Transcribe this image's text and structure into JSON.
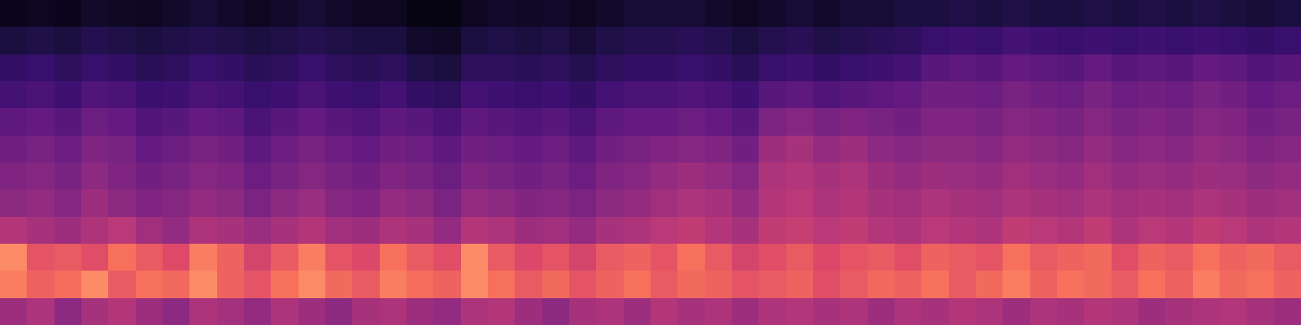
{
  "chart_data": {
    "type": "heatmap",
    "tick_labels": false,
    "grid": false,
    "zlim": [
      0,
      1
    ],
    "cells": [
      [
        0.55,
        0.6,
        0.5,
        0.58,
        0.62,
        0.55,
        0.5,
        0.6,
        0.57,
        0.52,
        0.6,
        0.55,
        0.5,
        0.58,
        0.6,
        0.55,
        0.52,
        0.6,
        0.62,
        0.55,
        0.5,
        0.58,
        0.6,
        0.55,
        0.62,
        0.58,
        0.6,
        0.55,
        0.6,
        0.62,
        0.58,
        0.6,
        0.55,
        0.6,
        0.58,
        0.62,
        0.6,
        0.55,
        0.6,
        0.58,
        0.62,
        0.6,
        0.55,
        0.58,
        0.6,
        0.62,
        0.58,
        0.55
      ],
      [
        0.88,
        0.82,
        0.85,
        0.9,
        0.8,
        0.86,
        0.84,
        0.9,
        0.82,
        0.78,
        0.86,
        0.9,
        0.84,
        0.8,
        0.88,
        0.85,
        0.82,
        0.9,
        0.86,
        0.8,
        0.84,
        0.78,
        0.82,
        0.86,
        0.8,
        0.84,
        0.82,
        0.78,
        0.8,
        0.82,
        0.76,
        0.8,
        0.84,
        0.82,
        0.86,
        0.8,
        0.84,
        0.88,
        0.82,
        0.86,
        0.84,
        0.8,
        0.86,
        0.82,
        0.88,
        0.84,
        0.86,
        0.82
      ],
      [
        0.9,
        0.78,
        0.8,
        0.76,
        0.86,
        0.8,
        0.75,
        0.88,
        0.82,
        0.72,
        0.8,
        0.88,
        0.78,
        0.74,
        0.86,
        0.8,
        0.76,
        0.9,
        0.8,
        0.74,
        0.78,
        0.72,
        0.8,
        0.82,
        0.78,
        0.86,
        0.8,
        0.72,
        0.76,
        0.8,
        0.74,
        0.78,
        0.8,
        0.76,
        0.82,
        0.8,
        0.78,
        0.86,
        0.8,
        0.82,
        0.84,
        0.76,
        0.82,
        0.8,
        0.86,
        0.82,
        0.84,
        0.8
      ],
      [
        0.62,
        0.58,
        0.55,
        0.6,
        0.64,
        0.56,
        0.52,
        0.6,
        0.58,
        0.54,
        0.58,
        0.62,
        0.56,
        0.55,
        0.6,
        0.58,
        0.52,
        0.62,
        0.6,
        0.55,
        0.56,
        0.52,
        0.58,
        0.6,
        0.64,
        0.66,
        0.62,
        0.58,
        0.66,
        0.68,
        0.64,
        0.66,
        0.62,
        0.6,
        0.64,
        0.62,
        0.6,
        0.66,
        0.64,
        0.62,
        0.66,
        0.6,
        0.64,
        0.62,
        0.66,
        0.64,
        0.6,
        0.62
      ],
      [
        0.5,
        0.52,
        0.48,
        0.55,
        0.5,
        0.46,
        0.48,
        0.52,
        0.5,
        0.45,
        0.5,
        0.54,
        0.48,
        0.46,
        0.52,
        0.5,
        0.45,
        0.52,
        0.5,
        0.47,
        0.48,
        0.45,
        0.5,
        0.52,
        0.56,
        0.6,
        0.58,
        0.52,
        0.62,
        0.64,
        0.6,
        0.62,
        0.58,
        0.56,
        0.6,
        0.58,
        0.56,
        0.6,
        0.58,
        0.56,
        0.6,
        0.56,
        0.58,
        0.56,
        0.6,
        0.58,
        0.55,
        0.56
      ],
      [
        0.46,
        0.48,
        0.44,
        0.5,
        0.46,
        0.42,
        0.44,
        0.48,
        0.46,
        0.4,
        0.44,
        0.48,
        0.44,
        0.42,
        0.46,
        0.44,
        0.4,
        0.46,
        0.44,
        0.42,
        0.44,
        0.4,
        0.46,
        0.48,
        0.52,
        0.55,
        0.52,
        0.48,
        0.6,
        0.62,
        0.58,
        0.6,
        0.55,
        0.52,
        0.55,
        0.54,
        0.52,
        0.56,
        0.54,
        0.52,
        0.56,
        0.52,
        0.54,
        0.52,
        0.55,
        0.54,
        0.5,
        0.52
      ],
      [
        0.42,
        0.44,
        0.4,
        0.46,
        0.44,
        0.38,
        0.4,
        0.44,
        0.42,
        0.36,
        0.4,
        0.44,
        0.4,
        0.38,
        0.42,
        0.4,
        0.36,
        0.42,
        0.4,
        0.38,
        0.4,
        0.36,
        0.42,
        0.44,
        0.46,
        0.48,
        0.46,
        0.42,
        0.55,
        0.58,
        0.52,
        0.55,
        0.5,
        0.48,
        0.5,
        0.5,
        0.48,
        0.52,
        0.5,
        0.48,
        0.52,
        0.48,
        0.5,
        0.48,
        0.52,
        0.5,
        0.46,
        0.48
      ],
      [
        0.36,
        0.38,
        0.34,
        0.4,
        0.38,
        0.32,
        0.34,
        0.38,
        0.36,
        0.3,
        0.34,
        0.38,
        0.34,
        0.32,
        0.36,
        0.34,
        0.3,
        0.36,
        0.34,
        0.32,
        0.34,
        0.3,
        0.36,
        0.38,
        0.38,
        0.4,
        0.38,
        0.34,
        0.45,
        0.48,
        0.44,
        0.46,
        0.44,
        0.42,
        0.46,
        0.46,
        0.44,
        0.48,
        0.46,
        0.44,
        0.48,
        0.44,
        0.46,
        0.44,
        0.48,
        0.46,
        0.42,
        0.44
      ],
      [
        0.28,
        0.3,
        0.26,
        0.32,
        0.3,
        0.25,
        0.26,
        0.3,
        0.28,
        0.24,
        0.26,
        0.3,
        0.26,
        0.24,
        0.28,
        0.22,
        0.2,
        0.28,
        0.26,
        0.24,
        0.26,
        0.22,
        0.28,
        0.3,
        0.3,
        0.32,
        0.3,
        0.26,
        0.34,
        0.36,
        0.32,
        0.34,
        0.36,
        0.38,
        0.42,
        0.42,
        0.4,
        0.44,
        0.42,
        0.4,
        0.44,
        0.4,
        0.42,
        0.4,
        0.44,
        0.42,
        0.38,
        0.4
      ],
      [
        0.22,
        0.24,
        0.2,
        0.24,
        0.22,
        0.18,
        0.2,
        0.24,
        0.22,
        0.18,
        0.2,
        0.24,
        0.2,
        0.18,
        0.2,
        0.14,
        0.12,
        0.2,
        0.2,
        0.18,
        0.2,
        0.16,
        0.2,
        0.22,
        0.22,
        0.24,
        0.22,
        0.18,
        0.24,
        0.26,
        0.22,
        0.24,
        0.26,
        0.28,
        0.34,
        0.36,
        0.34,
        0.38,
        0.36,
        0.34,
        0.38,
        0.34,
        0.36,
        0.34,
        0.38,
        0.36,
        0.32,
        0.34
      ],
      [
        0.12,
        0.14,
        0.12,
        0.16,
        0.14,
        0.12,
        0.14,
        0.16,
        0.14,
        0.12,
        0.14,
        0.16,
        0.14,
        0.12,
        0.12,
        0.08,
        0.07,
        0.12,
        0.14,
        0.12,
        0.14,
        0.1,
        0.14,
        0.16,
        0.16,
        0.18,
        0.16,
        0.12,
        0.16,
        0.18,
        0.14,
        0.16,
        0.18,
        0.2,
        0.24,
        0.26,
        0.24,
        0.28,
        0.26,
        0.24,
        0.26,
        0.24,
        0.26,
        0.24,
        0.26,
        0.24,
        0.22,
        0.24
      ],
      [
        0.05,
        0.06,
        0.05,
        0.08,
        0.07,
        0.06,
        0.08,
        0.1,
        0.08,
        0.06,
        0.08,
        0.1,
        0.08,
        0.06,
        0.06,
        0.03,
        0.03,
        0.06,
        0.08,
        0.07,
        0.08,
        0.06,
        0.08,
        0.1,
        0.1,
        0.1,
        0.08,
        0.06,
        0.08,
        0.1,
        0.08,
        0.1,
        0.1,
        0.12,
        0.12,
        0.14,
        0.12,
        0.14,
        0.12,
        0.12,
        0.14,
        0.12,
        0.14,
        0.12,
        0.14,
        0.12,
        0.1,
        0.12
      ]
    ]
  }
}
